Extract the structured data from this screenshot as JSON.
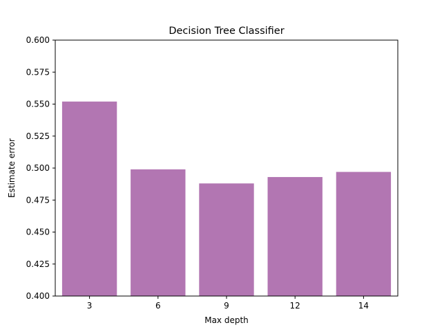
{
  "chart_data": {
    "type": "bar",
    "title": "Decision Tree Classifier",
    "xlabel": "Max depth",
    "ylabel": "Estimate error",
    "categories": [
      "3",
      "6",
      "9",
      "12",
      "14"
    ],
    "values": [
      0.552,
      0.499,
      0.488,
      0.493,
      0.497
    ],
    "ylim": [
      0.4,
      0.6
    ],
    "yticks": [
      "0.400",
      "0.425",
      "0.450",
      "0.475",
      "0.500",
      "0.525",
      "0.550",
      "0.575",
      "0.600"
    ],
    "bar_color": "#b276b2",
    "grid": false,
    "legend": "none"
  }
}
